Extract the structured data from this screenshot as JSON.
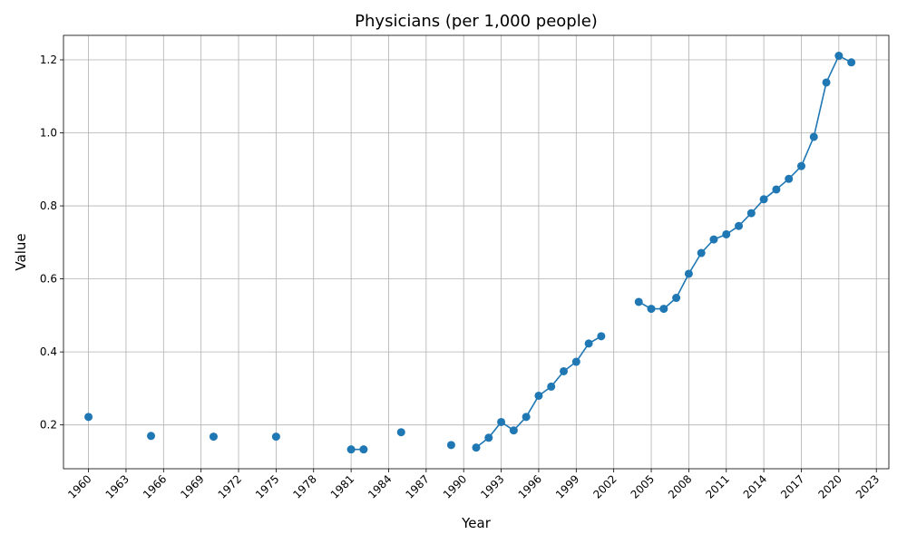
{
  "chart_data": {
    "type": "line",
    "title": "Physicians (per 1,000 people)",
    "xlabel": "Year",
    "ylabel": "Value",
    "xlim": [
      1958,
      2024
    ],
    "ylim": [
      0.08,
      1.267
    ],
    "x_ticks": [
      1960,
      1963,
      1966,
      1969,
      1972,
      1975,
      1978,
      1981,
      1984,
      1987,
      1990,
      1993,
      1996,
      1999,
      2002,
      2005,
      2008,
      2011,
      2014,
      2017,
      2020,
      2023
    ],
    "y_ticks": [
      0.2,
      0.4,
      0.6,
      0.8,
      1.0,
      1.2
    ],
    "y_tick_labels": [
      "0.2",
      "0.4",
      "0.6",
      "0.8",
      "1.0",
      "1.2"
    ],
    "grid": true,
    "series": [
      {
        "color": "#1f77b4",
        "points": [
          {
            "x": 1960,
            "y": 0.222
          },
          {
            "x": 1965,
            "y": 0.17
          },
          {
            "x": 1970,
            "y": 0.168
          },
          {
            "x": 1975,
            "y": 0.168
          },
          {
            "x": 1981,
            "y": 0.133
          },
          {
            "x": 1982,
            "y": 0.133
          },
          {
            "x": 1985,
            "y": 0.18
          },
          {
            "x": 1989,
            "y": 0.145
          },
          {
            "x": 1991,
            "y": 0.138
          },
          {
            "x": 1992,
            "y": 0.165
          },
          {
            "x": 1993,
            "y": 0.208
          },
          {
            "x": 1994,
            "y": 0.185
          },
          {
            "x": 1995,
            "y": 0.222
          },
          {
            "x": 1996,
            "y": 0.28
          },
          {
            "x": 1997,
            "y": 0.305
          },
          {
            "x": 1998,
            "y": 0.347
          },
          {
            "x": 1999,
            "y": 0.373
          },
          {
            "x": 2000,
            "y": 0.423
          },
          {
            "x": 2001,
            "y": 0.443
          },
          {
            "x": 2004,
            "y": 0.537
          },
          {
            "x": 2005,
            "y": 0.518
          },
          {
            "x": 2006,
            "y": 0.518
          },
          {
            "x": 2007,
            "y": 0.548
          },
          {
            "x": 2008,
            "y": 0.614
          },
          {
            "x": 2009,
            "y": 0.671
          },
          {
            "x": 2010,
            "y": 0.708
          },
          {
            "x": 2011,
            "y": 0.722
          },
          {
            "x": 2012,
            "y": 0.745
          },
          {
            "x": 2013,
            "y": 0.78
          },
          {
            "x": 2014,
            "y": 0.818
          },
          {
            "x": 2015,
            "y": 0.845
          },
          {
            "x": 2016,
            "y": 0.874
          },
          {
            "x": 2017,
            "y": 0.909
          },
          {
            "x": 2018,
            "y": 0.989
          },
          {
            "x": 2019,
            "y": 1.138
          },
          {
            "x": 2020,
            "y": 1.211
          },
          {
            "x": 2021,
            "y": 1.193
          }
        ]
      }
    ]
  }
}
